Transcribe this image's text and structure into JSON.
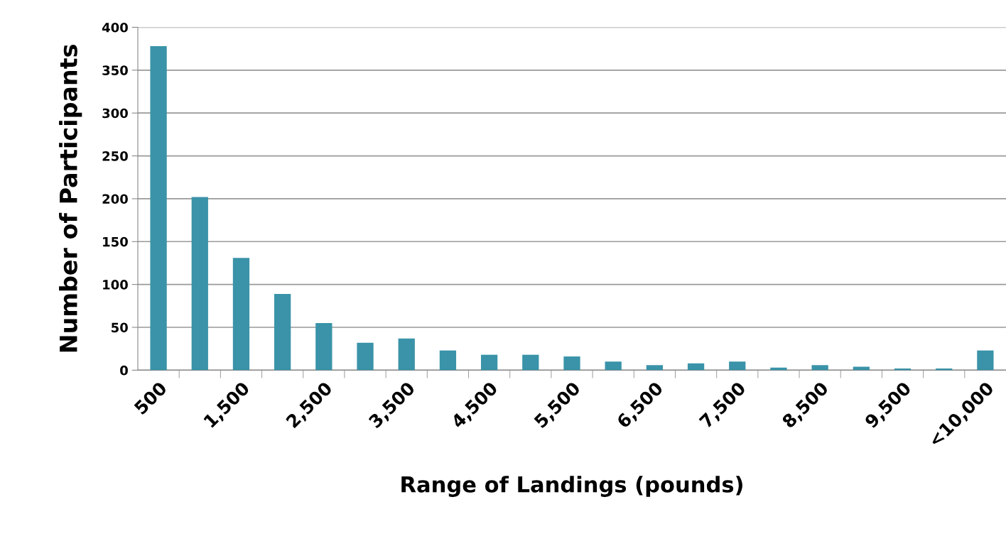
{
  "chart_data": {
    "type": "bar",
    "xlabel": "Range of Landings (pounds)",
    "ylabel": "Number of Participants",
    "categories": [
      "500",
      null,
      "1,500",
      null,
      "2,500",
      null,
      "3,500",
      null,
      "4,500",
      null,
      "5,500",
      null,
      "6,500",
      null,
      "7,500",
      null,
      "8,500",
      null,
      "9,500",
      null,
      "<10,000"
    ],
    "values": [
      378,
      202,
      131,
      89,
      55,
      32,
      37,
      23,
      18,
      18,
      16,
      10,
      6,
      8,
      10,
      3,
      6,
      4,
      2,
      2,
      23
    ],
    "color": "#3a93a8",
    "ylim": [
      0,
      400
    ],
    "yticks": [
      0,
      50,
      100,
      150,
      200,
      250,
      300,
      350,
      400
    ],
    "grid": "y",
    "legend": false
  }
}
